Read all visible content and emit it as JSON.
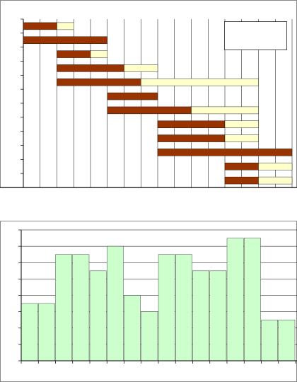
{
  "chart_data": [
    {
      "type": "gantt",
      "stacked": true,
      "categories": [
        null,
        null,
        null,
        null,
        null,
        null,
        null,
        null,
        null,
        null,
        null,
        null
      ],
      "series": [
        {
          "color": "none",
          "values": [
            0,
            0,
            2,
            2,
            2,
            5,
            5,
            8,
            8,
            8,
            12,
            12
          ]
        },
        {
          "color": "#993300",
          "values": [
            2,
            5,
            2,
            4,
            5,
            3,
            5,
            4,
            4,
            8,
            2,
            2
          ]
        },
        {
          "color": "#ffffcc",
          "values": [
            1,
            0,
            1,
            2,
            7,
            0,
            4,
            2,
            2,
            0,
            2,
            2
          ]
        }
      ],
      "xlim": [
        0,
        16
      ],
      "xticks": [
        0,
        1,
        2,
        3,
        4,
        5,
        6,
        7,
        8,
        9,
        10,
        11,
        12,
        13,
        14,
        15,
        16
      ],
      "grid": true,
      "legend": "upper right"
    },
    {
      "type": "bar",
      "categories": [
        null,
        null,
        null,
        null,
        null,
        null,
        null,
        null,
        null,
        null,
        null,
        null,
        null,
        null,
        null,
        null
      ],
      "values": [
        3.5,
        3.5,
        6.5,
        6.5,
        5.5,
        7,
        4,
        3,
        6.5,
        6.5,
        5.5,
        5.5,
        7.5,
        7.5,
        2.5,
        2.5
      ],
      "color": "#ccffcc",
      "ylim": [
        0,
        8
      ],
      "yticks": [
        0,
        1,
        2,
        3,
        4,
        5,
        6,
        7,
        8
      ],
      "grid": true
    }
  ]
}
